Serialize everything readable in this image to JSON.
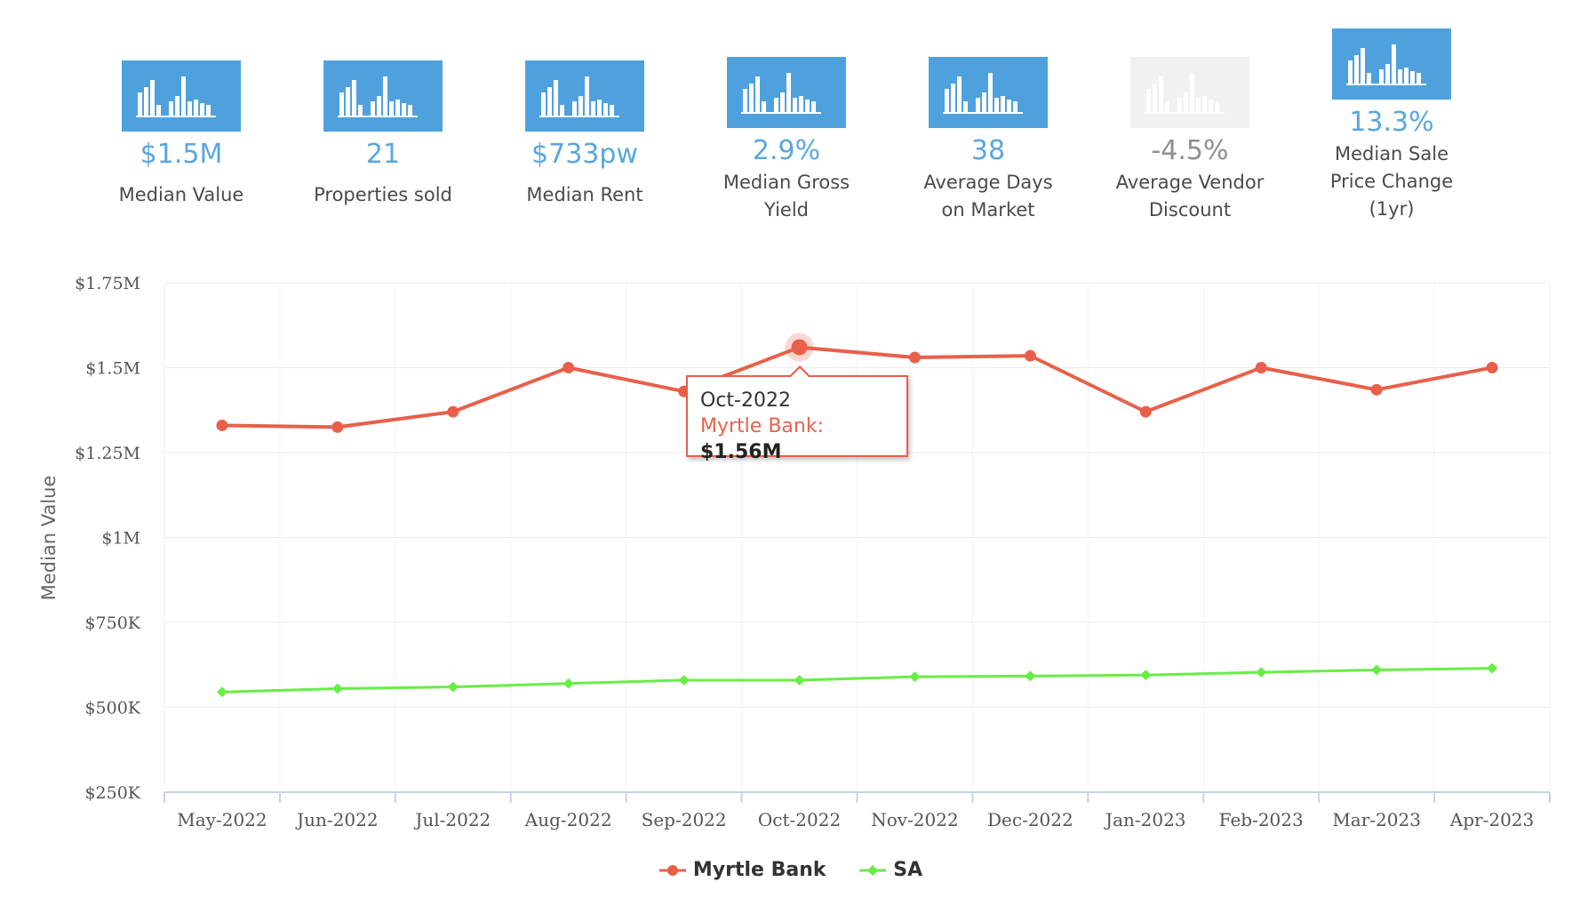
{
  "stats": [
    {
      "value": "$1.5M",
      "label": "Median Value",
      "dim": false
    },
    {
      "value": "21",
      "label": "Properties sold",
      "dim": false
    },
    {
      "value": "$733pw",
      "label": "Median Rent",
      "dim": false
    },
    {
      "value": "2.9%",
      "label": "Median Gross\nYield",
      "dim": false
    },
    {
      "value": "38",
      "label": "Average Days\non Market",
      "dim": false
    },
    {
      "value": "-4.5%",
      "label": "Average Vendor\nDiscount",
      "dim": true
    },
    {
      "value": "13.3%",
      "label": "Median Sale\nPrice Change\n(1yr)",
      "dim": false
    }
  ],
  "colors": {
    "accent": "#4fa1dd",
    "series1": "#e8604a",
    "series2": "#66ee44"
  },
  "chart_data": {
    "type": "line",
    "title": "",
    "xlabel": "",
    "ylabel": "Median Value",
    "categories": [
      "May-2022",
      "Jun-2022",
      "Jul-2022",
      "Aug-2022",
      "Sep-2022",
      "Oct-2022",
      "Nov-2022",
      "Dec-2022",
      "Jan-2023",
      "Feb-2023",
      "Mar-2023",
      "Apr-2023"
    ],
    "ylim": [
      250000,
      1750000
    ],
    "yticks": [
      250000,
      500000,
      750000,
      1000000,
      1250000,
      1500000,
      1750000
    ],
    "ytick_labels": [
      "$250K",
      "$500K",
      "$750K",
      "$1M",
      "$1.25M",
      "$1.5M",
      "$1.75M"
    ],
    "series": [
      {
        "name": "Myrtle Bank",
        "color": "#e8604a",
        "marker": "circle",
        "values": [
          1330000,
          1325000,
          1370000,
          1500000,
          1430000,
          1560000,
          1530000,
          1535000,
          1370000,
          1500000,
          1435000,
          1500000
        ]
      },
      {
        "name": "SA",
        "color": "#66ee44",
        "marker": "diamond",
        "values": [
          545000,
          555000,
          560000,
          570000,
          580000,
          580000,
          590000,
          592000,
          595000,
          603000,
          610000,
          615000
        ]
      }
    ],
    "tooltip": {
      "date": "Oct-2022",
      "series": "Myrtle Bank",
      "value": "$1.56M",
      "index": 5
    },
    "legend_position": "bottom-center"
  }
}
